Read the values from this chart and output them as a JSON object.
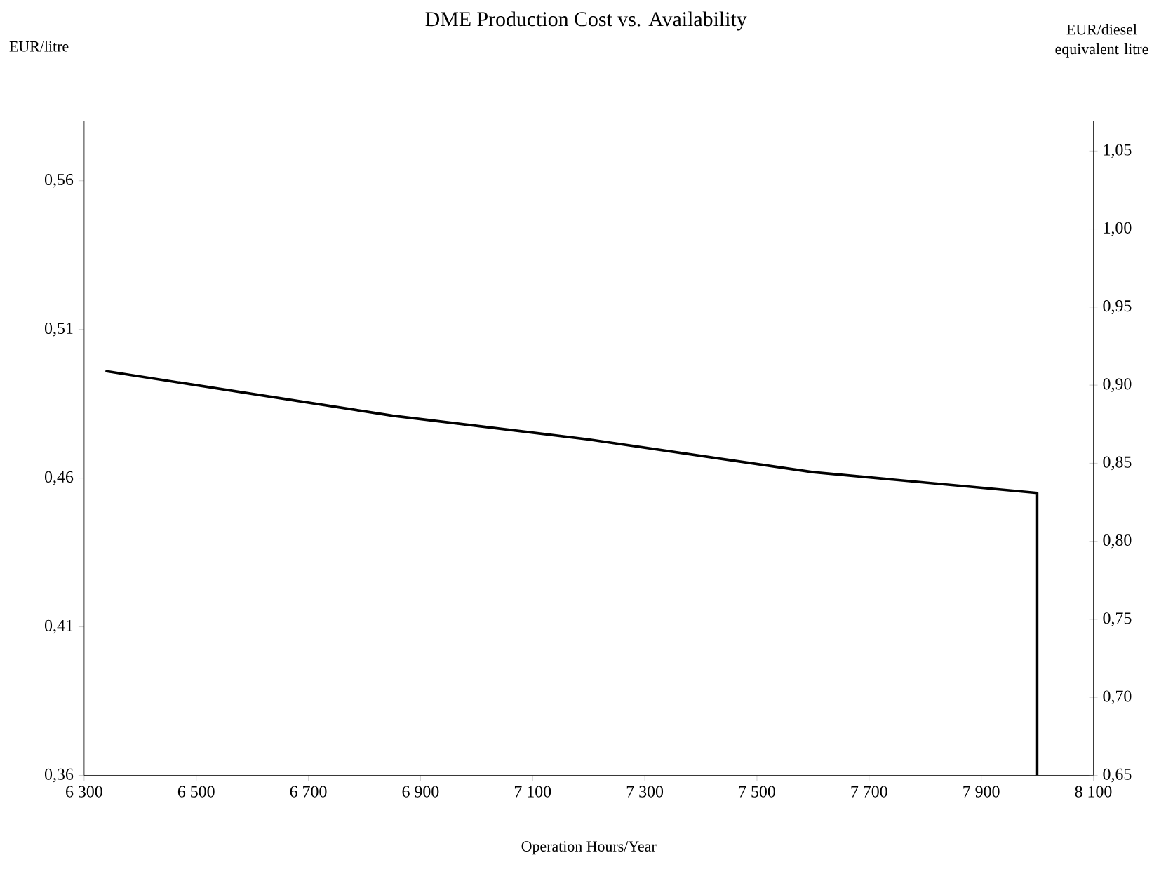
{
  "chart_data": {
    "type": "line",
    "title": "DME Production Cost vs. Availability",
    "xlabel": "Operation Hours/Year",
    "ylabel": "EUR/litre",
    "y2label": "EUR/diesel equivalent litre",
    "x": [
      6338,
      6850,
      7200,
      7600,
      8000,
      8000
    ],
    "series": [
      {
        "color": "#000000",
        "values": [
          0.496,
          0.481,
          0.473,
          0.462,
          0.455,
          0.36
        ]
      }
    ],
    "xlim": [
      6300,
      8100
    ],
    "xticks": [
      {
        "value": 6300,
        "label": "6 300"
      },
      {
        "value": 6500,
        "label": "6 500"
      },
      {
        "value": 6700,
        "label": "6 700"
      },
      {
        "value": 6900,
        "label": "6 900"
      },
      {
        "value": 7100,
        "label": "7 100"
      },
      {
        "value": 7300,
        "label": "7 300"
      },
      {
        "value": 7500,
        "label": "7 500"
      },
      {
        "value": 7700,
        "label": "7 700"
      },
      {
        "value": 7900,
        "label": "7 900"
      },
      {
        "value": 8100,
        "label": "8 100"
      }
    ],
    "ylim": [
      0.36,
      0.58
    ],
    "yticks": [
      {
        "value": 0.36,
        "label": "0,36"
      },
      {
        "value": 0.41,
        "label": "0,41"
      },
      {
        "value": 0.46,
        "label": "0,46"
      },
      {
        "value": 0.51,
        "label": "0,51"
      },
      {
        "value": 0.56,
        "label": "0,56"
      }
    ],
    "y2lim": [
      0.65,
      1.069
    ],
    "y2ticks": [
      {
        "value": 0.65,
        "label": "0,65"
      },
      {
        "value": 0.7,
        "label": "0,70"
      },
      {
        "value": 0.75,
        "label": "0,75"
      },
      {
        "value": 0.8,
        "label": "0,80"
      },
      {
        "value": 0.85,
        "label": "0,85"
      },
      {
        "value": 0.9,
        "label": "0,90"
      },
      {
        "value": 0.95,
        "label": "0,95"
      },
      {
        "value": 1.0,
        "label": "1,00"
      },
      {
        "value": 1.05,
        "label": "1,05"
      }
    ],
    "marker": "none",
    "line_style": "solid"
  }
}
